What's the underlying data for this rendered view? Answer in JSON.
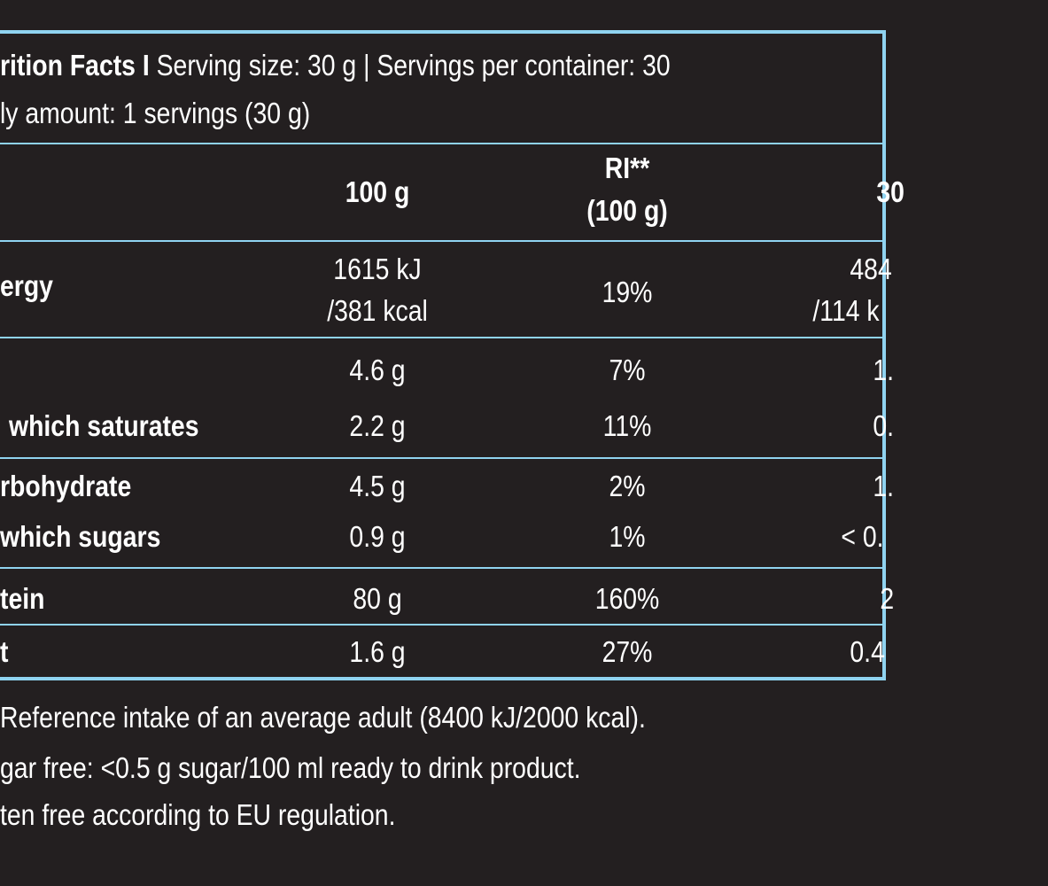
{
  "header": {
    "title": "rition Facts I",
    "serving_info": " Serving size: 30 g | Servings per container: 30",
    "daily_amount": "ly amount: 1 servings (30 g)"
  },
  "columns": {
    "per100": "100 g",
    "ri_line1": "RI**",
    "ri_line2": "(100 g)",
    "serving": "30"
  },
  "rows": [
    {
      "label": "ergy",
      "per100_line1": "1615 kJ",
      "per100_line2": "/381 kcal",
      "ri": "19%",
      "serving_line1": "484",
      "serving_line2": "/114 k"
    },
    {
      "label": "",
      "per100": "4.6 g",
      "ri": "7%",
      "serving": "1."
    },
    {
      "label": "which saturates",
      "per100": "2.2 g",
      "ri": "11%",
      "serving": "0."
    },
    {
      "label": "rbohydrate",
      "per100": "4.5 g",
      "ri": "2%",
      "serving": "1."
    },
    {
      "label": " which sugars",
      "per100": "0.9 g",
      "ri": "1%",
      "serving": "< 0."
    },
    {
      "label": "tein",
      "per100": "80 g",
      "ri": "160%",
      "serving": "2"
    },
    {
      "label": "t",
      "per100": "1.6 g",
      "ri": "27%",
      "serving": "0.4"
    }
  ],
  "footnotes": [
    "Reference intake of an average adult (8400 kJ/2000 kcal).",
    "gar free: <0.5 g sugar/100 ml ready to drink product.",
    "ten free according to EU regulation."
  ],
  "colors": {
    "background": "#231f20",
    "rule": "#8fd3f0",
    "text": "#ffffff"
  }
}
